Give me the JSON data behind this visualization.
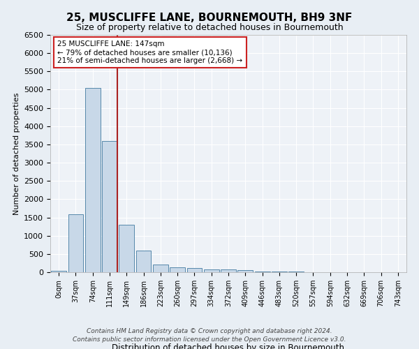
{
  "title_line1": "25, MUSCLIFFE LANE, BOURNEMOUTH, BH9 3NF",
  "title_line2": "Size of property relative to detached houses in Bournemouth",
  "xlabel": "Distribution of detached houses by size in Bournemouth",
  "ylabel": "Number of detached properties",
  "bin_labels": [
    "0sqm",
    "37sqm",
    "74sqm",
    "111sqm",
    "149sqm",
    "186sqm",
    "223sqm",
    "260sqm",
    "297sqm",
    "334sqm",
    "372sqm",
    "409sqm",
    "446sqm",
    "483sqm",
    "520sqm",
    "557sqm",
    "594sqm",
    "632sqm",
    "669sqm",
    "706sqm",
    "743sqm"
  ],
  "bar_values": [
    30,
    1580,
    5050,
    3600,
    1300,
    590,
    210,
    140,
    115,
    80,
    80,
    50,
    10,
    10,
    10,
    0,
    0,
    0,
    0,
    0,
    0
  ],
  "bar_color": "#c8d8e8",
  "bar_edge_color": "#5588aa",
  "vline_pos": 3.45,
  "vline_color": "#aa2222",
  "annotation_text": "25 MUSCLIFFE LANE: 147sqm\n← 79% of detached houses are smaller (10,136)\n21% of semi-detached houses are larger (2,668) →",
  "annotation_box_color": "#ffffff",
  "annotation_box_edge": "#cc2222",
  "ylim": [
    0,
    6500
  ],
  "yticks": [
    0,
    500,
    1000,
    1500,
    2000,
    2500,
    3000,
    3500,
    4000,
    4500,
    5000,
    5500,
    6000,
    6500
  ],
  "footer_line1": "Contains HM Land Registry data © Crown copyright and database right 2024.",
  "footer_line2": "Contains public sector information licensed under the Open Government Licence v3.0.",
  "background_color": "#e8eef4",
  "plot_bg_color": "#eef2f7"
}
